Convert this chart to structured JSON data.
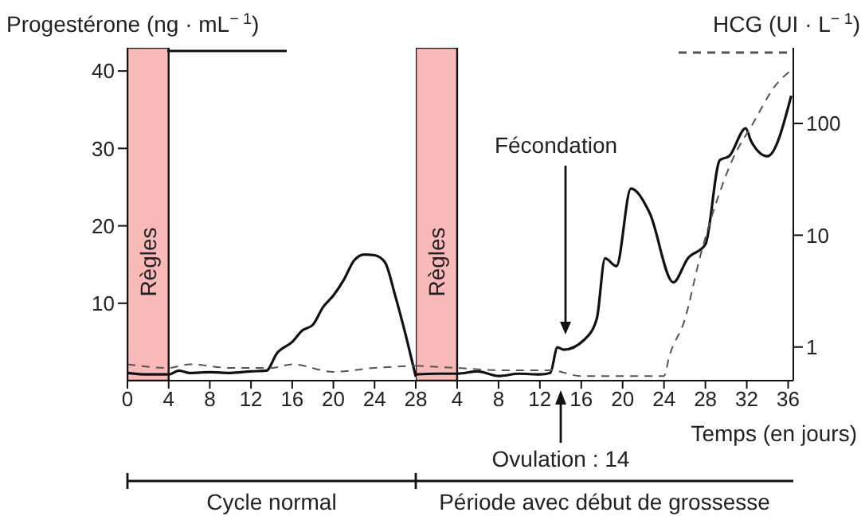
{
  "chart_data": [
    {
      "type": "line",
      "ylabel": "Progestérone (ng · mL$^{− 1}$)",
      "xlim": [
        0,
        28
      ],
      "xticks": [
        0,
        4,
        8,
        12,
        16,
        20,
        24,
        28
      ],
      "ylim": [
        0,
        43
      ],
      "yticks": [
        10,
        20,
        30,
        40
      ],
      "y2lim": [
        0.5,
        475
      ],
      "log": "y2",
      "marker": "none",
      "series": [
        {
          "color": "#111111",
          "line_style": "solid",
          "x": [
            0,
            2,
            4,
            5,
            6,
            8,
            10,
            12,
            13.5,
            14.5,
            16,
            17,
            18,
            19,
            20,
            21,
            22,
            23,
            24,
            25,
            26,
            27,
            28
          ],
          "values": [
            1,
            0.8,
            0.8,
            1.3,
            1,
            1.1,
            1,
            1.2,
            1.3,
            3.5,
            5,
            6.5,
            7.2,
            9.5,
            11,
            13,
            15.5,
            16.3,
            16.2,
            15.3,
            11,
            6,
            0.5
          ]
        },
        {
          "color": "#555555",
          "line_style": "dashed",
          "axis": "y2",
          "x": [
            0,
            4,
            6,
            10,
            14,
            16,
            20,
            24,
            28
          ],
          "values": [
            0.7,
            0.65,
            0.7,
            0.65,
            0.65,
            0.7,
            0.6,
            0.65,
            0.68
          ]
        }
      ],
      "bands": [
        {
          "axis": "x",
          "from": 0,
          "to": 4,
          "label": "Règles",
          "color": "#f9b9b9"
        }
      ],
      "annotations": [
        "Cycle normal"
      ]
    },
    {
      "type": "line",
      "y2label": "HCG (UI · L$^{− 1}$)",
      "xlabel": "Temps (en jours)",
      "xlim": [
        0,
        36.5
      ],
      "xticks": [
        4,
        8,
        12,
        16,
        20,
        24,
        28,
        32,
        36
      ],
      "ylim": [
        0,
        43
      ],
      "y2lim": [
        0.5,
        475
      ],
      "y2ticks": [
        1,
        10,
        100
      ],
      "log": "y2",
      "marker": "none",
      "series": [
        {
          "color": "#111111",
          "line_style": "solid",
          "x": [
            0,
            2,
            4,
            6,
            8,
            10,
            12,
            13,
            13.7,
            14.3,
            16.3,
            17.5,
            18.3,
            19.4,
            20.8,
            22.6,
            24.9,
            26.3,
            28,
            29.4,
            30.3,
            31.9,
            32.4,
            34,
            36.3
          ],
          "values": [
            0.8,
            0.9,
            0.9,
            1.2,
            0.6,
            0.9,
            0.8,
            1,
            4.3,
            4,
            5.3,
            8,
            15.8,
            14.8,
            24.8,
            21.7,
            12.7,
            15.8,
            17.6,
            28.5,
            29,
            32.6,
            31,
            29,
            36.8
          ]
        },
        {
          "color": "#555555",
          "line_style": "dashed",
          "axis": "y2",
          "x": [
            0,
            4,
            8,
            13,
            16,
            20,
            24,
            24.5,
            26,
            27.5,
            29,
            30.6,
            32.6,
            34.8,
            36.3
          ],
          "values": [
            0.68,
            0.65,
            0.62,
            0.62,
            0.55,
            0.55,
            0.55,
            0.82,
            1.75,
            6.5,
            19,
            47,
            100,
            220,
            300
          ]
        }
      ],
      "bands": [
        {
          "axis": "x",
          "from": 0,
          "to": 4,
          "label": "Règles",
          "color": "#f9b9b9"
        }
      ],
      "annotations": [
        "Fécondation",
        "Ovulation : 14",
        "Période avec début de grossesse"
      ]
    }
  ]
}
